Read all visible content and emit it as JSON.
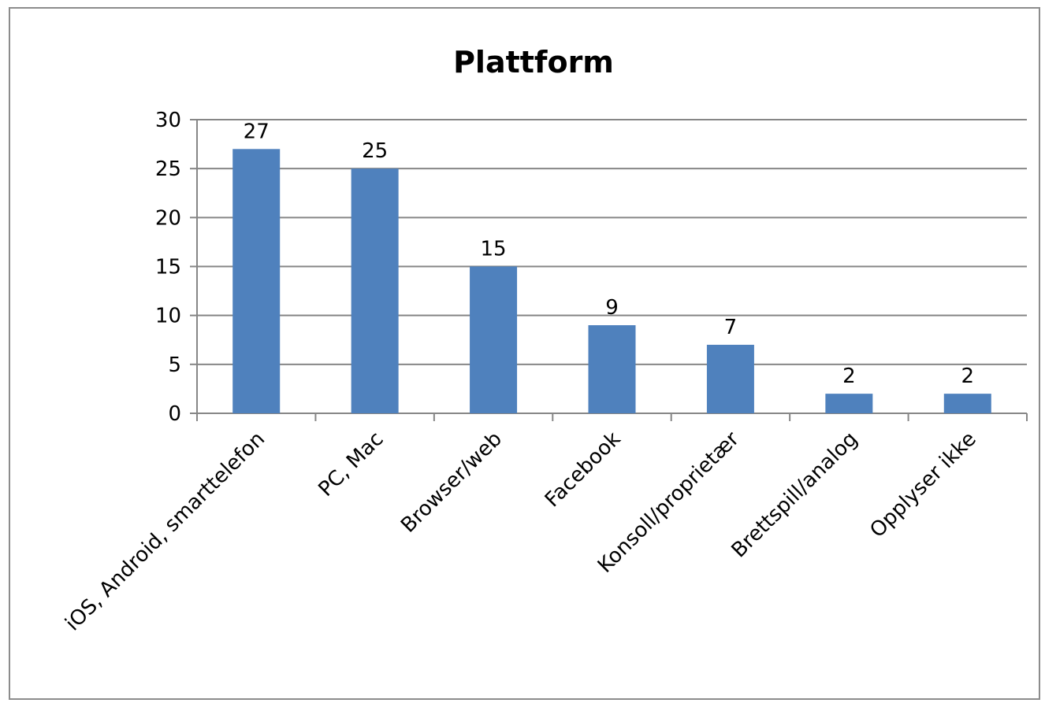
{
  "chart_data": {
    "type": "bar",
    "title": "Plattform",
    "xlabel": "",
    "ylabel": "",
    "categories": [
      "iOS, Android, smarttelefon",
      "PC, Mac",
      "Browser/web",
      "Facebook",
      "Konsoll/proprietær",
      "Brettspill/analog",
      "Opplyser ikke"
    ],
    "values": [
      27,
      25,
      15,
      9,
      7,
      2,
      2
    ],
    "ylim": [
      0,
      30
    ],
    "yticks": [
      "0",
      "5",
      "10",
      "15",
      "20",
      "25",
      "30"
    ],
    "data_labels": [
      "27",
      "25",
      "15",
      "9",
      "7",
      "2",
      "2"
    ],
    "grid": true,
    "legend": "none",
    "colors": {
      "bar": "#4f81bd",
      "grid": "#868686",
      "axis": "#868686",
      "frame": "#8c8c8c"
    }
  }
}
